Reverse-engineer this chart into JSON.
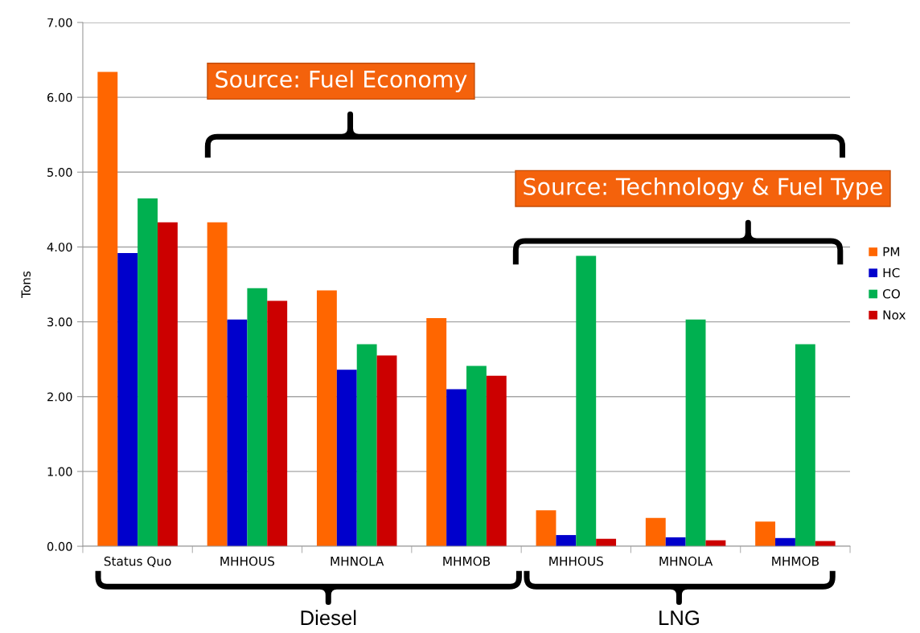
{
  "chart_data": {
    "type": "bar",
    "ylabel": "Tons",
    "categories": [
      "Status Quo",
      "MHHOUS",
      "MHNOLA",
      "MHMOB",
      "MHHOUS",
      "MHNOLA",
      "MHMOB"
    ],
    "series": [
      {
        "name": "PM",
        "color": "#ff6600",
        "values": [
          6.34,
          4.33,
          3.42,
          3.05,
          0.48,
          0.38,
          0.33
        ]
      },
      {
        "name": "HC",
        "color": "#0000cc",
        "values": [
          3.92,
          3.03,
          2.36,
          2.1,
          0.15,
          0.12,
          0.11
        ]
      },
      {
        "name": "CO",
        "color": "#00b050",
        "values": [
          4.65,
          3.45,
          2.7,
          2.41,
          3.88,
          3.03,
          2.7
        ]
      },
      {
        "name": "Nox",
        "color": "#cc0000",
        "values": [
          4.33,
          3.28,
          2.55,
          2.28,
          0.1,
          0.08,
          0.07
        ]
      }
    ],
    "ylim": [
      0,
      7
    ],
    "yticks": [
      {
        "value": 0,
        "label": "0.00"
      },
      {
        "value": 1,
        "label": "1.00"
      },
      {
        "value": 2,
        "label": "2.00"
      },
      {
        "value": 3,
        "label": "3.00"
      },
      {
        "value": 4,
        "label": "4.00"
      },
      {
        "value": 5,
        "label": "5.00"
      },
      {
        "value": 6,
        "label": "6.00"
      },
      {
        "value": 7,
        "label": "7.00"
      }
    ],
    "grid": "y",
    "legend": "right",
    "annotations": [
      "Source: Fuel Economy",
      "Source: Technology & Fuel Type",
      "Diesel",
      "LNG"
    ]
  }
}
